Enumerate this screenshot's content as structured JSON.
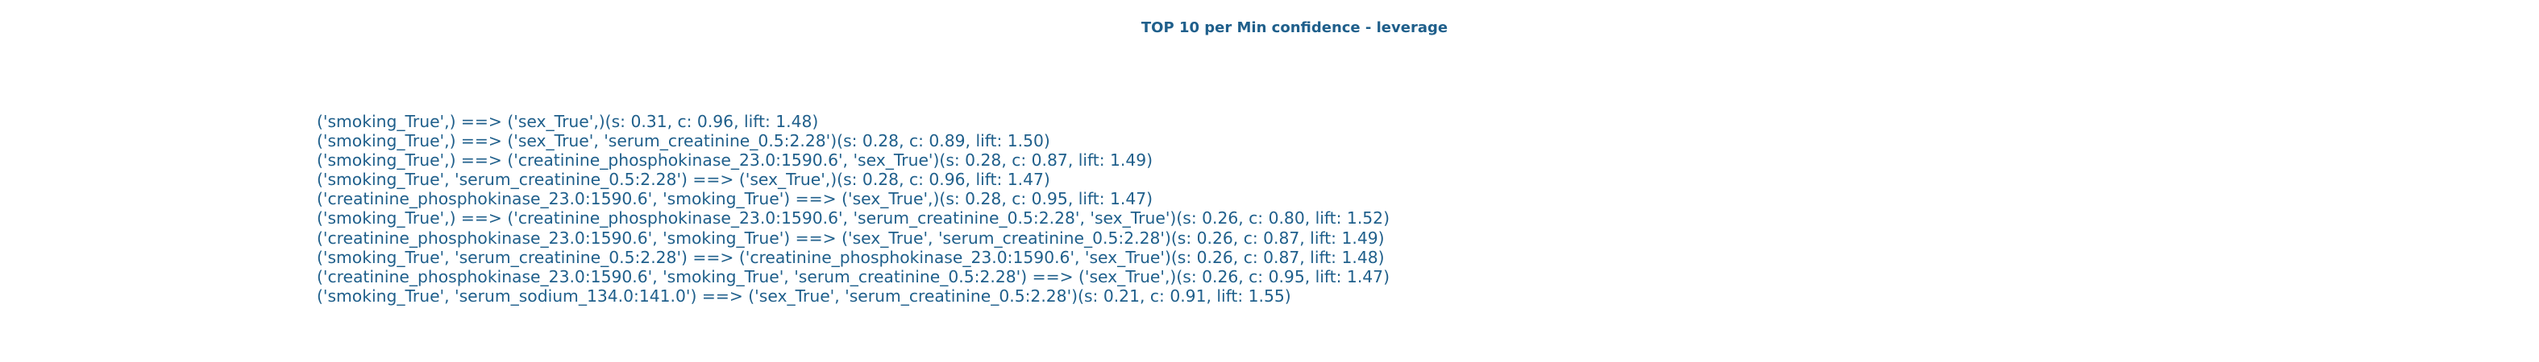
{
  "chart_data": {
    "type": "table",
    "title": "TOP 10 per Min confidence - leverage",
    "rules": [
      "('smoking_True',) ==> ('sex_True',)(s: 0.31, c: 0.96, lift: 1.48)",
      "('smoking_True',) ==> ('sex_True', 'serum_creatinine_0.5:2.28')(s: 0.28, c: 0.89, lift: 1.50)",
      "('smoking_True',) ==> ('creatinine_phosphokinase_23.0:1590.6', 'sex_True')(s: 0.28, c: 0.87, lift: 1.49)",
      "('smoking_True', 'serum_creatinine_0.5:2.28') ==> ('sex_True',)(s: 0.28, c: 0.96, lift: 1.47)",
      "('creatinine_phosphokinase_23.0:1590.6', 'smoking_True') ==> ('sex_True',)(s: 0.28, c: 0.95, lift: 1.47)",
      "('smoking_True',) ==> ('creatinine_phosphokinase_23.0:1590.6', 'serum_creatinine_0.5:2.28', 'sex_True')(s: 0.26, c: 0.80, lift: 1.52)",
      "('creatinine_phosphokinase_23.0:1590.6', 'smoking_True') ==> ('sex_True', 'serum_creatinine_0.5:2.28')(s: 0.26, c: 0.87, lift: 1.49)",
      "('smoking_True', 'serum_creatinine_0.5:2.28') ==> ('creatinine_phosphokinase_23.0:1590.6', 'sex_True')(s: 0.26, c: 0.87, lift: 1.48)",
      "('creatinine_phosphokinase_23.0:1590.6', 'smoking_True', 'serum_creatinine_0.5:2.28') ==> ('sex_True',)(s: 0.26, c: 0.95, lift: 1.47)",
      "('smoking_True', 'serum_sodium_134.0:141.0') ==> ('sex_True', 'serum_creatinine_0.5:2.28')(s: 0.21, c: 0.91, lift: 1.55)"
    ]
  },
  "colors": {
    "text": "#1f5f8b",
    "background": "#ffffff"
  }
}
